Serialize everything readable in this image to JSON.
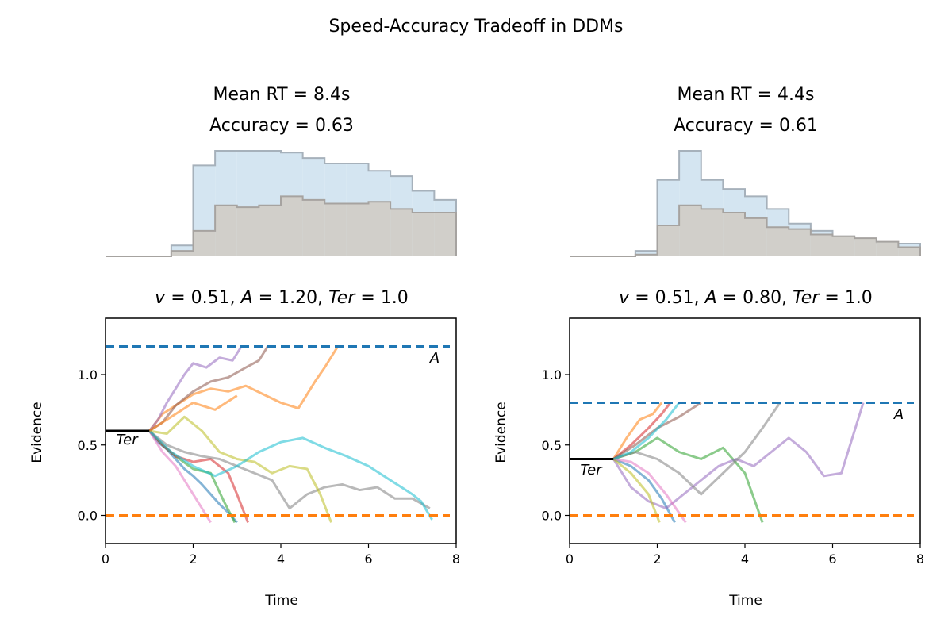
{
  "figure_title": "Speed-Accuracy Tradeoff in DDMs",
  "chart_data": [
    {
      "type": "histogram",
      "panel": "top-left",
      "title_lines": [
        "Mean RT = 8.4s",
        "Accuracy = 0.63"
      ],
      "axes_visible": false,
      "bins": [
        0,
        0.5,
        1,
        1.5,
        2,
        2.5,
        3,
        3.5,
        4,
        4.5,
        5,
        5.5,
        6,
        6.5,
        7,
        7.5
      ],
      "series": [
        {
          "values": [
            0,
            0,
            0,
            0.06,
            0.5,
            0.58,
            0.58,
            0.58,
            0.57,
            0.54,
            0.51,
            0.51,
            0.47,
            0.44,
            0.36,
            0.31
          ],
          "color": "#d4e5f1",
          "edge": "#a6b1bb"
        },
        {
          "values": [
            0,
            0,
            0,
            0.03,
            0.14,
            0.28,
            0.27,
            0.28,
            0.33,
            0.31,
            0.29,
            0.29,
            0.3,
            0.26,
            0.24,
            0.24
          ],
          "color": "#d1cfca",
          "edge": "#a6a3a0"
        }
      ]
    },
    {
      "type": "histogram",
      "panel": "top-right",
      "title_lines": [
        "Mean RT = 4.4s",
        "Accuracy = 0.61"
      ],
      "axes_visible": false,
      "bins": [
        0,
        0.5,
        1,
        1.5,
        2,
        2.5,
        3,
        3.5,
        4,
        4.5,
        5,
        5.5,
        6,
        6.5,
        7,
        7.5
      ],
      "series": [
        {
          "values": [
            0,
            0,
            0,
            0.03,
            0.42,
            0.58,
            0.42,
            0.37,
            0.33,
            0.26,
            0.18,
            0.14,
            0.11,
            0.09,
            0.07,
            0.07
          ],
          "color": "#d4e5f1",
          "edge": "#a6b1bb"
        },
        {
          "values": [
            0,
            0,
            0,
            0.01,
            0.17,
            0.28,
            0.26,
            0.24,
            0.21,
            0.16,
            0.15,
            0.12,
            0.11,
            0.1,
            0.08,
            0.05
          ],
          "color": "#d1cfca",
          "edge": "#a6a3a0"
        }
      ]
    },
    {
      "type": "line",
      "panel": "bottom-left",
      "title_parts": {
        "v": "0.51",
        "A": "1.20",
        "Ter": "1.0"
      },
      "xlabel": "Time",
      "ylabel": "Evidence",
      "xlim": [
        0,
        8
      ],
      "ylim": [
        -0.2,
        1.4
      ],
      "xticks": [
        "0",
        "2",
        "4",
        "6",
        "8"
      ],
      "yticks": [
        "0.0",
        "0.5",
        "1.0"
      ],
      "ytick_values": [
        0,
        0.5,
        1.0
      ],
      "xtick_values": [
        0,
        2,
        4,
        6,
        8
      ],
      "upper_bound": 1.2,
      "lower_bound": 0.0,
      "start_point": 0.6,
      "ter_segment": [
        0,
        1.0
      ],
      "annotations": {
        "A_label": "A",
        "Ter_label": "Ter"
      },
      "series": [
        {
          "color": "#1f77b4",
          "x": [
            1.0,
            1.2,
            1.4,
            1.6,
            1.8,
            2.0,
            2.2,
            2.4,
            2.6,
            2.8,
            3.0
          ],
          "y": [
            0.6,
            0.52,
            0.47,
            0.4,
            0.33,
            0.28,
            0.22,
            0.15,
            0.08,
            0.02,
            -0.05
          ]
        },
        {
          "color": "#ff7f0e",
          "x": [
            1.0,
            1.3,
            1.6,
            2.0,
            2.4,
            2.8,
            3.2,
            3.6,
            4.0,
            4.4,
            4.8,
            5.0,
            5.3
          ],
          "y": [
            0.6,
            0.72,
            0.78,
            0.86,
            0.9,
            0.88,
            0.92,
            0.86,
            0.8,
            0.76,
            0.96,
            1.05,
            1.2
          ]
        },
        {
          "color": "#2ca02c",
          "x": [
            1.0,
            1.3,
            1.6,
            2.0,
            2.4,
            2.7,
            2.95
          ],
          "y": [
            0.6,
            0.5,
            0.42,
            0.33,
            0.3,
            0.1,
            -0.05
          ]
        },
        {
          "color": "#d62728",
          "x": [
            1.0,
            1.3,
            1.6,
            2.0,
            2.4,
            2.8,
            3.0,
            3.25
          ],
          "y": [
            0.6,
            0.5,
            0.42,
            0.38,
            0.4,
            0.3,
            0.15,
            -0.05
          ]
        },
        {
          "color": "#9467bd",
          "x": [
            1.0,
            1.2,
            1.4,
            1.6,
            1.8,
            2.0,
            2.3,
            2.6,
            2.9,
            3.1
          ],
          "y": [
            0.6,
            0.68,
            0.8,
            0.9,
            1.0,
            1.08,
            1.05,
            1.12,
            1.1,
            1.2
          ]
        },
        {
          "color": "#8c564b",
          "x": [
            1.0,
            1.3,
            1.6,
            2.0,
            2.4,
            2.8,
            3.2,
            3.5,
            3.7
          ],
          "y": [
            0.6,
            0.66,
            0.78,
            0.88,
            0.95,
            0.98,
            1.05,
            1.1,
            1.2
          ]
        },
        {
          "color": "#e377c2",
          "x": [
            1.0,
            1.3,
            1.6,
            1.9,
            2.2,
            2.4
          ],
          "y": [
            0.6,
            0.45,
            0.35,
            0.2,
            0.05,
            -0.05
          ]
        },
        {
          "color": "#7f7f7f",
          "x": [
            1.0,
            1.4,
            1.8,
            2.2,
            2.6,
            3.0,
            3.4,
            3.8,
            4.2,
            4.6,
            5.0,
            5.4,
            5.8,
            6.2,
            6.6,
            7.0,
            7.4
          ],
          "y": [
            0.6,
            0.5,
            0.45,
            0.42,
            0.4,
            0.35,
            0.3,
            0.25,
            0.05,
            0.15,
            0.2,
            0.22,
            0.18,
            0.2,
            0.12,
            0.12,
            0.05
          ]
        },
        {
          "color": "#bcbd22",
          "x": [
            1.0,
            1.4,
            1.8,
            2.2,
            2.6,
            3.0,
            3.4,
            3.8,
            4.2,
            4.6,
            4.9,
            5.15
          ],
          "y": [
            0.6,
            0.58,
            0.7,
            0.6,
            0.45,
            0.4,
            0.38,
            0.3,
            0.35,
            0.33,
            0.15,
            -0.05
          ]
        },
        {
          "color": "#17becf",
          "x": [
            1.0,
            1.5,
            2.0,
            2.5,
            3.0,
            3.5,
            4.0,
            4.5,
            5.0,
            5.5,
            6.0,
            6.5,
            7.0,
            7.2,
            7.45
          ],
          "y": [
            0.6,
            0.45,
            0.35,
            0.28,
            0.35,
            0.45,
            0.52,
            0.55,
            0.48,
            0.42,
            0.35,
            0.25,
            0.15,
            0.1,
            -0.03
          ]
        },
        {
          "color": "#ff7f0e",
          "x": [
            1.0,
            1.5,
            2.0,
            2.5,
            3.0
          ],
          "y": [
            0.6,
            0.7,
            0.8,
            0.75,
            0.85
          ]
        }
      ]
    },
    {
      "type": "line",
      "panel": "bottom-right",
      "title_parts": {
        "v": "0.51",
        "A": "0.80",
        "Ter": "1.0"
      },
      "xlabel": "Time",
      "ylabel": "Evidence",
      "xlim": [
        0,
        8
      ],
      "ylim": [
        -0.2,
        1.4
      ],
      "xticks": [
        "0",
        "2",
        "4",
        "6",
        "8"
      ],
      "yticks": [
        "0.0",
        "0.5",
        "1.0"
      ],
      "ytick_values": [
        0,
        0.5,
        1.0
      ],
      "xtick_values": [
        0,
        2,
        4,
        6,
        8
      ],
      "upper_bound": 0.8,
      "lower_bound": 0.0,
      "start_point": 0.4,
      "ter_segment": [
        0,
        1.0
      ],
      "annotations": {
        "A_label": "A",
        "Ter_label": "Ter"
      },
      "series": [
        {
          "color": "#1f77b4",
          "x": [
            1.0,
            1.4,
            1.8,
            2.1,
            2.4
          ],
          "y": [
            0.4,
            0.35,
            0.25,
            0.12,
            -0.05
          ]
        },
        {
          "color": "#ff7f0e",
          "x": [
            1.0,
            1.3,
            1.6,
            1.9,
            2.1
          ],
          "y": [
            0.4,
            0.55,
            0.68,
            0.72,
            0.8
          ]
        },
        {
          "color": "#2ca02c",
          "x": [
            1.0,
            1.5,
            2.0,
            2.5,
            3.0,
            3.5,
            4.0,
            4.4
          ],
          "y": [
            0.4,
            0.45,
            0.55,
            0.45,
            0.4,
            0.48,
            0.3,
            -0.05
          ]
        },
        {
          "color": "#d62728",
          "x": [
            1.0,
            1.4,
            1.8,
            2.1,
            2.3
          ],
          "y": [
            0.4,
            0.5,
            0.62,
            0.72,
            0.8
          ]
        },
        {
          "color": "#9467bd",
          "x": [
            1.0,
            1.4,
            1.8,
            2.2,
            2.6,
            3.0,
            3.4,
            3.8,
            4.2,
            4.6,
            5.0,
            5.4,
            5.8,
            6.2,
            6.7
          ],
          "y": [
            0.4,
            0.2,
            0.1,
            0.05,
            0.15,
            0.25,
            0.35,
            0.4,
            0.35,
            0.45,
            0.55,
            0.45,
            0.28,
            0.3,
            0.8
          ]
        },
        {
          "color": "#8c564b",
          "x": [
            1.0,
            1.5,
            2.0,
            2.5,
            3.0
          ],
          "y": [
            0.4,
            0.5,
            0.62,
            0.7,
            0.8
          ]
        },
        {
          "color": "#e377c2",
          "x": [
            1.0,
            1.4,
            1.8,
            2.2,
            2.65
          ],
          "y": [
            0.4,
            0.38,
            0.3,
            0.15,
            -0.05
          ]
        },
        {
          "color": "#7f7f7f",
          "x": [
            1.0,
            1.5,
            2.0,
            2.5,
            3.0,
            3.5,
            4.0,
            4.4,
            4.8
          ],
          "y": [
            0.4,
            0.45,
            0.4,
            0.3,
            0.15,
            0.3,
            0.45,
            0.62,
            0.8
          ]
        },
        {
          "color": "#bcbd22",
          "x": [
            1.0,
            1.4,
            1.8,
            2.05
          ],
          "y": [
            0.4,
            0.3,
            0.15,
            -0.05
          ]
        },
        {
          "color": "#17becf",
          "x": [
            1.0,
            1.4,
            1.8,
            2.2,
            2.5
          ],
          "y": [
            0.4,
            0.45,
            0.55,
            0.68,
            0.8
          ]
        }
      ]
    }
  ]
}
